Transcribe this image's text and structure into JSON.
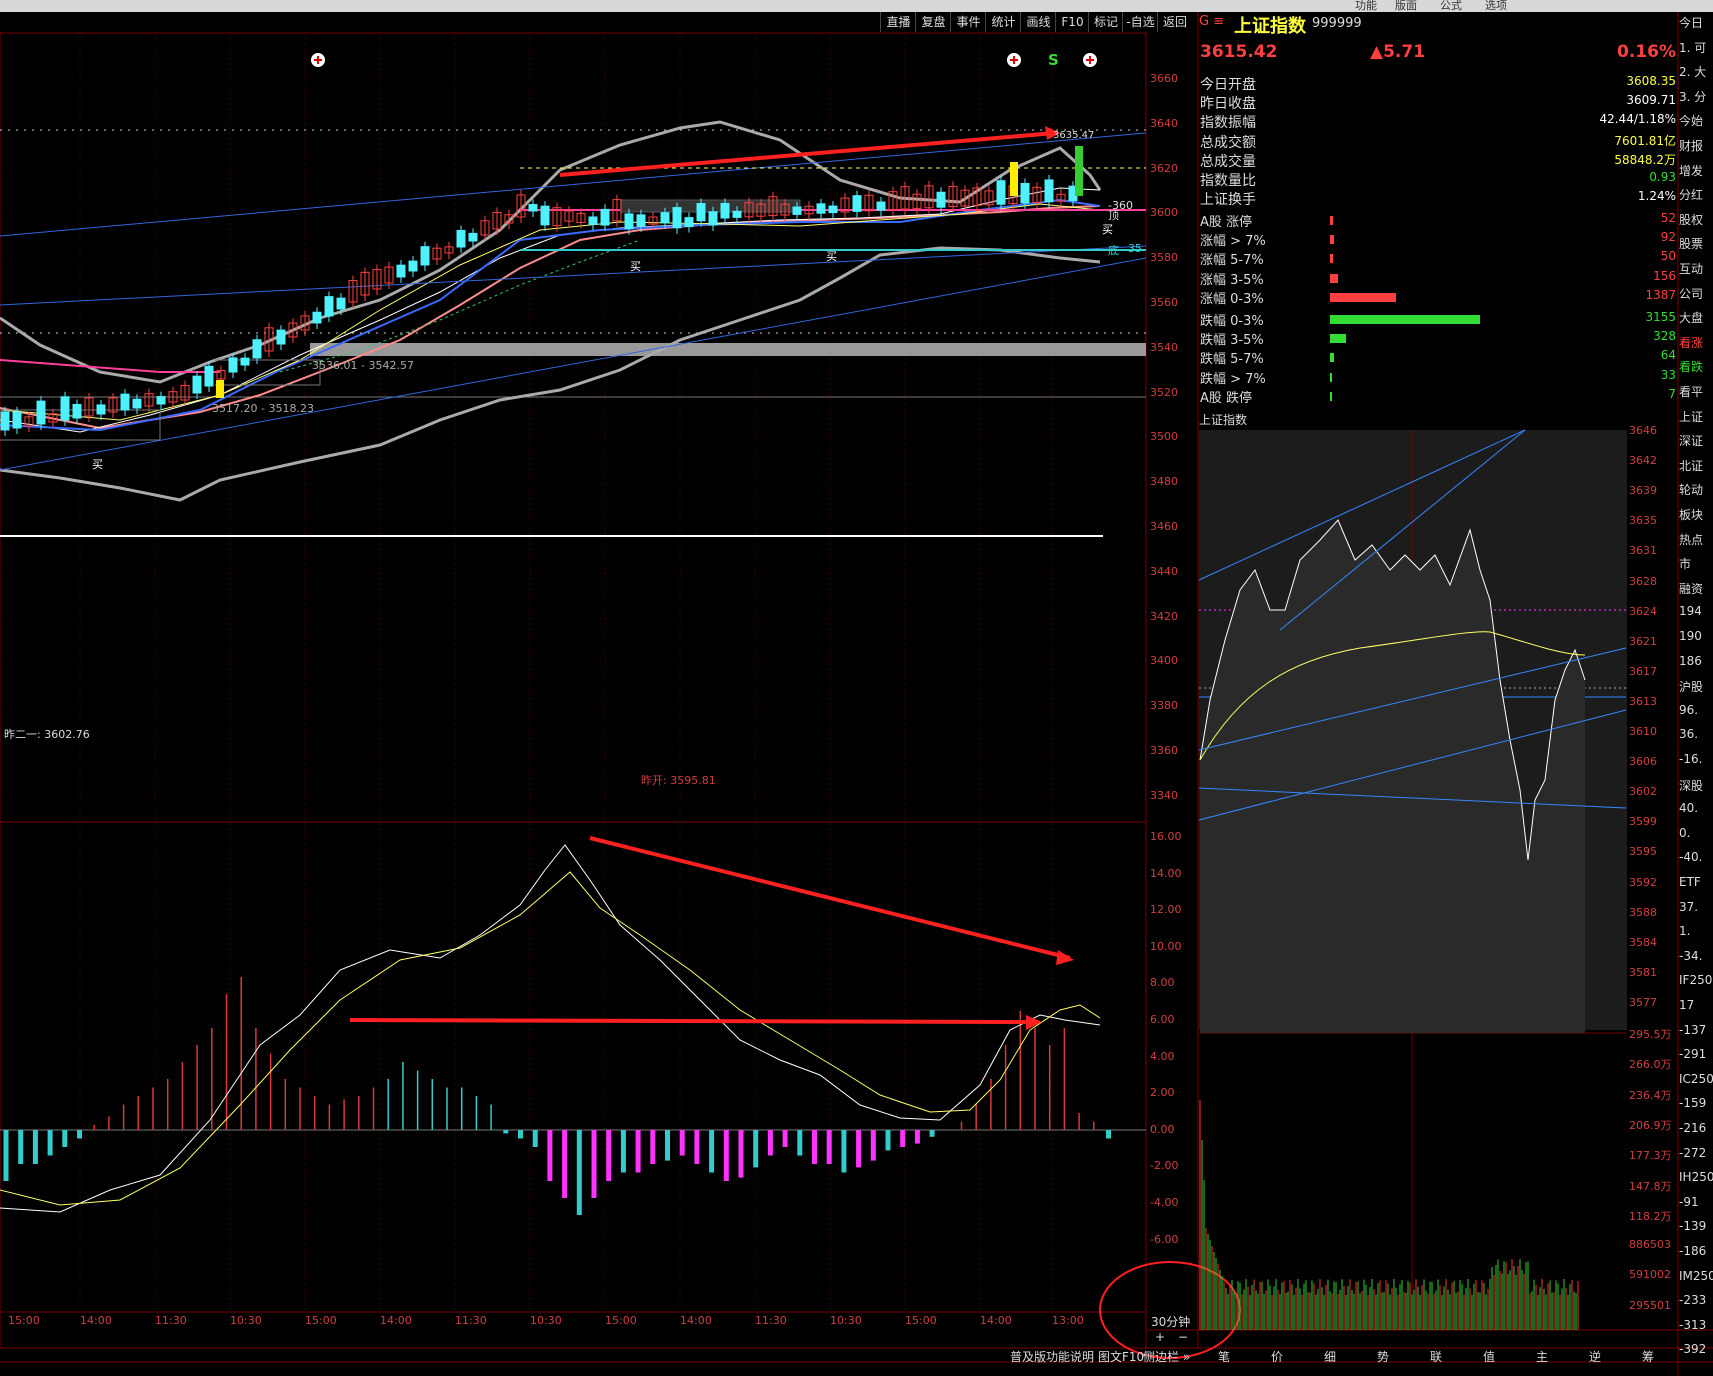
{
  "top_menu": [
    "功能",
    "版面",
    "公式",
    "选项"
  ],
  "toolbar": {
    "buttons": [
      "直播",
      "复盘",
      "事件",
      "统计",
      "画线",
      "F10",
      "标记",
      "-自选",
      "返回"
    ]
  },
  "kline": {
    "price_axis": [
      "3660",
      "3640",
      "3620",
      "3600",
      "3580",
      "3560",
      "3540",
      "3520",
      "3500",
      "3480",
      "3460",
      "3440",
      "3420",
      "3400",
      "3380",
      "3360",
      "3340"
    ],
    "annotations": {
      "box1": "3536.01 - 3542.57",
      "box2": "3517.20 - 3518.23",
      "prev_high": "昨二一: 3602.76",
      "prev_open": "昨开: 3595.81",
      "buy": "买",
      "top_mark": "顶",
      "bottom_mark": "底",
      "level_3600": "-360",
      "level_35": "35",
      "high_tag": "3635.47",
      "s_mark": "S"
    }
  },
  "macd": {
    "axis": [
      "16.00",
      "14.00",
      "12.00",
      "10.00",
      "8.00",
      "6.00",
      "4.00",
      "2.00",
      "0.00",
      "-2.00",
      "-4.00",
      "-6.00"
    ]
  },
  "time_axis": [
    "15:00",
    "14:00",
    "11:30",
    "10:30",
    "15:00",
    "14:00",
    "11:30",
    "10:30",
    "15:00",
    "14:00",
    "11:30",
    "10:30",
    "15:00",
    "14:00",
    "13:00"
  ],
  "period": "30分钟",
  "zoom": {
    "plus": "+",
    "minus": "−"
  },
  "bottom_bar": {
    "help": "普及版功能说明",
    "f10": "图文F10",
    "sidebar": "侧边栏 »"
  },
  "quote": {
    "prefix": "G ≡",
    "name": "上证指数",
    "code": "999999",
    "price": "3615.42",
    "change": "▲5.71",
    "pct": "0.16%",
    "rows": [
      {
        "k": "今日开盘",
        "v": "3608.35",
        "c": "#ffff40"
      },
      {
        "k": "昨日收盘",
        "v": "3609.71",
        "c": "#ffffff"
      },
      {
        "k": "指数振幅",
        "v": "42.44/1.18%",
        "c": "#ffffff"
      },
      {
        "k": "总成交额",
        "v": "7601.81亿",
        "c": "#ffff40"
      },
      {
        "k": "总成交量",
        "v": "58848.2万",
        "c": "#ffff40"
      },
      {
        "k": "指数量比",
        "v": "0.93",
        "c": "#33dd33"
      },
      {
        "k": "上证换手",
        "v": "1.24%",
        "c": "#ffffff"
      }
    ],
    "breadth": [
      {
        "k": "A股 涨停",
        "v": "52",
        "c": "#ff4040",
        "w": 3
      },
      {
        "k": "涨幅 > 7%",
        "v": "92",
        "c": "#ff4040",
        "w": 4
      },
      {
        "k": "涨幅 5-7%",
        "v": "50",
        "c": "#ff4040",
        "w": 3
      },
      {
        "k": "涨幅 3-5%",
        "v": "156",
        "c": "#ff4040",
        "w": 8
      },
      {
        "k": "涨幅 0-3%",
        "v": "1387",
        "c": "#ff4040",
        "w": 66
      },
      {
        "k": "跌幅 0-3%",
        "v": "3155",
        "c": "#33dd33",
        "w": 150
      },
      {
        "k": "跌幅 3-5%",
        "v": "328",
        "c": "#33dd33",
        "w": 16
      },
      {
        "k": "跌幅 5-7%",
        "v": "64",
        "c": "#33dd33",
        "w": 4
      },
      {
        "k": "跌幅 > 7%",
        "v": "33",
        "c": "#33dd33",
        "w": 2
      },
      {
        "k": "A股 跌停",
        "v": "7",
        "c": "#33dd33",
        "w": 1
      }
    ]
  },
  "intraday": {
    "title": "上证指数",
    "axis": [
      "3646",
      "3642",
      "3639",
      "3635",
      "3631",
      "3628",
      "3624",
      "3621",
      "3617",
      "3613",
      "3610",
      "3606",
      "3602",
      "3599",
      "3595",
      "3592",
      "3588",
      "3584",
      "3581",
      "3577"
    ],
    "vol_axis": [
      "295.5万",
      "266.0万",
      "236.4万",
      "206.9万",
      "177.3万",
      "147.8万",
      "118.2万",
      "886503",
      "591002",
      "295501"
    ],
    "tabs": [
      "笔",
      "价",
      "细",
      "势",
      "联",
      "值",
      "主",
      "逆",
      "筹"
    ]
  },
  "side": {
    "items": [
      {
        "t": "今日",
        "c": ""
      },
      {
        "t": "1. 可",
        "c": ""
      },
      {
        "t": "2. 大",
        "c": ""
      },
      {
        "t": "3. 分",
        "c": ""
      },
      {
        "t": "今始",
        "c": ""
      },
      {
        "t": "财报",
        "c": ""
      },
      {
        "t": "增发",
        "c": ""
      },
      {
        "t": "分红",
        "c": ""
      },
      {
        "t": "股权",
        "c": ""
      },
      {
        "t": "股票",
        "c": ""
      },
      {
        "t": "互动",
        "c": ""
      },
      {
        "t": "公司",
        "c": ""
      },
      {
        "t": "大盘",
        "c": ""
      },
      {
        "t": "看涨",
        "c": "red"
      },
      {
        "t": "看跌",
        "c": "green"
      },
      {
        "t": "看平",
        "c": ""
      },
      {
        "t": "上证",
        "c": ""
      },
      {
        "t": "深证",
        "c": ""
      },
      {
        "t": "北证",
        "c": ""
      },
      {
        "t": "轮动",
        "c": ""
      },
      {
        "t": "板块",
        "c": ""
      },
      {
        "t": "热点",
        "c": ""
      },
      {
        "t": "市",
        "c": ""
      },
      {
        "t": "融资",
        "c": ""
      },
      {
        "t": "194",
        "c": ""
      },
      {
        "t": "190",
        "c": ""
      },
      {
        "t": "186",
        "c": ""
      },
      {
        "t": "沪股",
        "c": ""
      },
      {
        "t": "96.",
        "c": ""
      },
      {
        "t": "36.",
        "c": ""
      },
      {
        "t": "-16.",
        "c": ""
      },
      {
        "t": "深股",
        "c": ""
      },
      {
        "t": "40.",
        "c": ""
      },
      {
        "t": "0.",
        "c": ""
      },
      {
        "t": "-40.",
        "c": ""
      },
      {
        "t": "ETF",
        "c": ""
      },
      {
        "t": "37.",
        "c": ""
      },
      {
        "t": "1.",
        "c": ""
      },
      {
        "t": "-34.",
        "c": ""
      },
      {
        "t": "IF250",
        "c": ""
      },
      {
        "t": "17",
        "c": ""
      },
      {
        "t": "-137",
        "c": ""
      },
      {
        "t": "-291",
        "c": ""
      },
      {
        "t": "IC250",
        "c": ""
      },
      {
        "t": "-159",
        "c": ""
      },
      {
        "t": "-216",
        "c": ""
      },
      {
        "t": "-272",
        "c": ""
      },
      {
        "t": "IH250",
        "c": ""
      },
      {
        "t": "-91",
        "c": ""
      },
      {
        "t": "-139",
        "c": ""
      },
      {
        "t": "-186",
        "c": ""
      },
      {
        "t": "IM250",
        "c": ""
      },
      {
        "t": "-233",
        "c": ""
      },
      {
        "t": "-313",
        "c": ""
      },
      {
        "t": "-392",
        "c": ""
      }
    ]
  }
}
